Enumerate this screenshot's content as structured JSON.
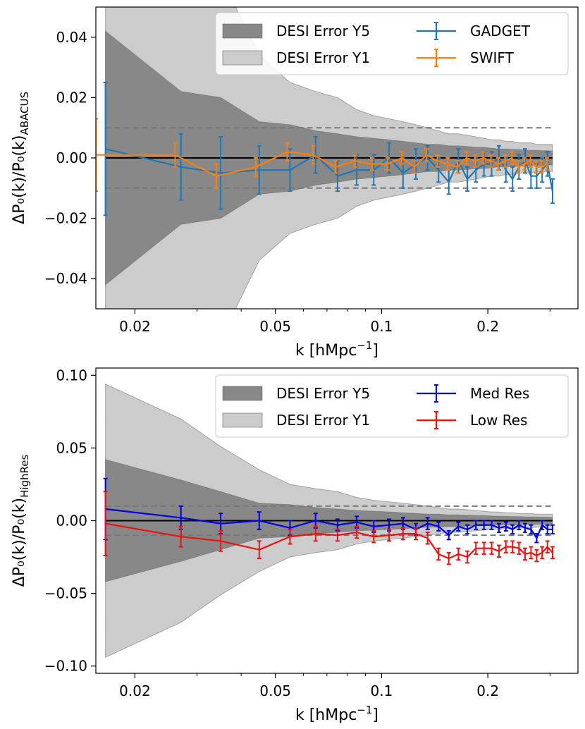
{
  "chart_data": [
    {
      "type": "line",
      "panel": "top",
      "xscale": "log",
      "xlim": [
        0.0155,
        0.36
      ],
      "ylim": [
        -0.05,
        0.05
      ],
      "xticks": [
        {
          "value": 0.02,
          "label": "0.02"
        },
        {
          "value": 0.05,
          "label": "0.05"
        },
        {
          "value": 0.1,
          "label": "0.1"
        },
        {
          "value": 0.2,
          "label": "0.2"
        }
      ],
      "yticks": [
        {
          "value": 0.04,
          "label": "0.04"
        },
        {
          "value": 0.02,
          "label": "0.02"
        },
        {
          "value": 0.0,
          "label": "0.00"
        },
        {
          "value": -0.02,
          "label": "−0.02"
        },
        {
          "value": -0.04,
          "label": "−0.04"
        }
      ],
      "xlabel_main": "k [hMpc",
      "xlabel_sup": "−1",
      "xlabel_close": "]",
      "ylabel_main": "ΔP₀(k)/P₀(k)",
      "ylabel_sub": "ABACUS",
      "dashed_levels": [
        0.01,
        -0.01
      ],
      "bands": [
        {
          "name": "DESI Error Y1",
          "color": "#cccccc",
          "k": [
            0.0165,
            0.027,
            0.035,
            0.045,
            0.055,
            0.065,
            0.075,
            0.085,
            0.095,
            0.105,
            0.115,
            0.125,
            0.135,
            0.145,
            0.155,
            0.165,
            0.175,
            0.185,
            0.195,
            0.205,
            0.215,
            0.225,
            0.235,
            0.245,
            0.255,
            0.265,
            0.275,
            0.285,
            0.295,
            0.305
          ],
          "upper": [
            0.06,
            0.06,
            0.06,
            0.034,
            0.025,
            0.022,
            0.02,
            0.016,
            0.014,
            0.013,
            0.012,
            0.011,
            0.01,
            0.009,
            0.008,
            0.008,
            0.0075,
            0.007,
            0.0065,
            0.006,
            0.006,
            0.0055,
            0.0055,
            0.005,
            0.005,
            0.005,
            0.0045,
            0.0045,
            0.0045,
            0.0045
          ]
        },
        {
          "name": "DESI Error Y5",
          "color": "#888888",
          "k": [
            0.0165,
            0.027,
            0.035,
            0.045,
            0.055,
            0.065,
            0.075,
            0.085,
            0.095,
            0.105,
            0.115,
            0.125,
            0.135,
            0.145,
            0.155,
            0.165,
            0.175,
            0.185,
            0.195,
            0.205,
            0.215,
            0.225,
            0.235,
            0.245,
            0.255,
            0.265,
            0.275,
            0.285,
            0.295,
            0.305
          ],
          "upper": [
            0.042,
            0.022,
            0.02,
            0.012,
            0.011,
            0.009,
            0.008,
            0.007,
            0.0065,
            0.006,
            0.0055,
            0.005,
            0.0045,
            0.0045,
            0.004,
            0.004,
            0.0038,
            0.0035,
            0.0035,
            0.0032,
            0.003,
            0.003,
            0.0028,
            0.0028,
            0.0026,
            0.0025,
            0.0025,
            0.0024,
            0.0024,
            0.0023
          ]
        }
      ],
      "series": [
        {
          "name": "GADGET",
          "color": "#1f77b4",
          "k": [
            0.0165,
            0.027,
            0.035,
            0.045,
            0.055,
            0.065,
            0.075,
            0.085,
            0.095,
            0.105,
            0.115,
            0.125,
            0.135,
            0.145,
            0.155,
            0.165,
            0.175,
            0.185,
            0.195,
            0.205,
            0.215,
            0.225,
            0.235,
            0.245,
            0.255,
            0.265,
            0.275,
            0.285,
            0.295,
            0.305
          ],
          "values": [
            0.003,
            -0.003,
            -0.005,
            -0.004,
            -0.004,
            0.001,
            -0.006,
            -0.004,
            -0.004,
            0.0,
            -0.005,
            -0.002,
            0.0,
            -0.004,
            -0.008,
            -0.001,
            -0.007,
            -0.004,
            -0.002,
            -0.002,
            0.0,
            -0.004,
            -0.007,
            -0.003,
            -0.001,
            -0.006,
            -0.006,
            -0.004,
            -0.002,
            -0.011
          ],
          "errors": [
            0.022,
            0.011,
            0.012,
            0.008,
            0.007,
            0.006,
            0.005,
            0.005,
            0.005,
            0.005,
            0.005,
            0.005,
            0.004,
            0.004,
            0.004,
            0.004,
            0.004,
            0.004,
            0.004,
            0.004,
            0.004,
            0.004,
            0.004,
            0.004,
            0.004,
            0.004,
            0.004,
            0.004,
            0.004,
            0.004
          ]
        },
        {
          "name": "SWIFT",
          "color": "#ff7f0e",
          "k": [
            0.0155,
            0.026,
            0.034,
            0.044,
            0.054,
            0.064,
            0.074,
            0.084,
            0.094,
            0.104,
            0.114,
            0.124,
            0.134,
            0.144,
            0.154,
            0.164,
            0.174,
            0.184,
            0.194,
            0.204,
            0.214,
            0.224,
            0.234,
            0.244,
            0.254,
            0.264,
            0.274,
            0.284,
            0.294
          ],
          "values": [
            0.001,
            0.001,
            -0.006,
            -0.003,
            0.002,
            0.001,
            -0.003,
            -0.001,
            -0.002,
            -0.002,
            0.0,
            -0.003,
            0.001,
            -0.001,
            -0.002,
            -0.003,
            0.0,
            -0.001,
            0.0,
            -0.001,
            -0.002,
            -0.001,
            0.0,
            -0.003,
            -0.002,
            -0.001,
            -0.003,
            -0.003,
            -0.002
          ],
          "errors": [
            0.012,
            0.004,
            0.004,
            0.003,
            0.003,
            0.003,
            0.002,
            0.002,
            0.002,
            0.002,
            0.002,
            0.002,
            0.002,
            0.002,
            0.002,
            0.002,
            0.002,
            0.002,
            0.002,
            0.002,
            0.002,
            0.002,
            0.002,
            0.002,
            0.002,
            0.002,
            0.002,
            0.002,
            0.002
          ]
        }
      ],
      "legend": [
        {
          "label": "DESI Error Y5",
          "kind": "band",
          "color": "#888888"
        },
        {
          "label": "DESI Error Y1",
          "kind": "band",
          "color": "#cccccc"
        },
        {
          "label": "GADGET",
          "kind": "errorbar",
          "color": "#1f77b4"
        },
        {
          "label": "SWIFT",
          "kind": "errorbar",
          "color": "#ff7f0e"
        }
      ],
      "legend_position": "top-right"
    },
    {
      "type": "line",
      "panel": "bottom",
      "xscale": "log",
      "xlim": [
        0.0155,
        0.36
      ],
      "ylim": [
        -0.105,
        0.105
      ],
      "xticks": [
        {
          "value": 0.02,
          "label": "0.02"
        },
        {
          "value": 0.05,
          "label": "0.05"
        },
        {
          "value": 0.1,
          "label": "0.1"
        },
        {
          "value": 0.2,
          "label": "0.2"
        }
      ],
      "yticks": [
        {
          "value": 0.1,
          "label": "0.10"
        },
        {
          "value": 0.05,
          "label": "0.05"
        },
        {
          "value": 0.0,
          "label": "0.00"
        },
        {
          "value": -0.05,
          "label": "−0.05"
        },
        {
          "value": -0.1,
          "label": "−0.10"
        }
      ],
      "xlabel_main": "k [hMpc",
      "xlabel_sup": "−1",
      "xlabel_close": "]",
      "ylabel_main": "ΔP₀(k)/P₀(k)",
      "ylabel_sub": "HighRes",
      "dashed_levels": [
        0.01,
        -0.01
      ],
      "bands": [
        {
          "name": "DESI Error Y1",
          "color": "#cccccc",
          "k": [
            0.0165,
            0.027,
            0.035,
            0.045,
            0.055,
            0.065,
            0.075,
            0.085,
            0.095,
            0.105,
            0.115,
            0.125,
            0.135,
            0.145,
            0.155,
            0.165,
            0.175,
            0.185,
            0.195,
            0.205,
            0.215,
            0.225,
            0.235,
            0.245,
            0.255,
            0.265,
            0.275,
            0.285,
            0.295,
            0.305
          ],
          "upper": [
            0.094,
            0.07,
            0.051,
            0.035,
            0.025,
            0.022,
            0.02,
            0.016,
            0.014,
            0.013,
            0.012,
            0.011,
            0.01,
            0.009,
            0.008,
            0.008,
            0.0075,
            0.007,
            0.0065,
            0.006,
            0.006,
            0.0055,
            0.0055,
            0.005,
            0.005,
            0.005,
            0.0045,
            0.0045,
            0.0045,
            0.0045
          ]
        },
        {
          "name": "DESI Error Y5",
          "color": "#888888",
          "k": [
            0.0165,
            0.027,
            0.035,
            0.045,
            0.055,
            0.065,
            0.075,
            0.085,
            0.095,
            0.105,
            0.115,
            0.125,
            0.135,
            0.145,
            0.155,
            0.165,
            0.175,
            0.185,
            0.195,
            0.205,
            0.215,
            0.225,
            0.235,
            0.245,
            0.255,
            0.265,
            0.275,
            0.285,
            0.295,
            0.305
          ],
          "upper": [
            0.042,
            0.028,
            0.02,
            0.012,
            0.011,
            0.009,
            0.008,
            0.007,
            0.0065,
            0.006,
            0.0055,
            0.005,
            0.0045,
            0.0045,
            0.004,
            0.004,
            0.0038,
            0.0035,
            0.0035,
            0.0032,
            0.003,
            0.003,
            0.0028,
            0.0028,
            0.0026,
            0.0025,
            0.0025,
            0.0024,
            0.0024,
            0.0023
          ]
        }
      ],
      "series": [
        {
          "name": "Med Res",
          "color": "#0000dd",
          "k": [
            0.0165,
            0.027,
            0.035,
            0.045,
            0.055,
            0.065,
            0.075,
            0.085,
            0.095,
            0.105,
            0.115,
            0.125,
            0.135,
            0.145,
            0.155,
            0.165,
            0.175,
            0.185,
            0.195,
            0.205,
            0.215,
            0.225,
            0.235,
            0.245,
            0.255,
            0.265,
            0.275,
            0.285,
            0.295,
            0.305
          ],
          "values": [
            0.008,
            0.002,
            -0.002,
            0.0,
            -0.005,
            0.0,
            -0.003,
            -0.001,
            -0.004,
            -0.003,
            -0.002,
            -0.006,
            -0.002,
            -0.004,
            -0.01,
            -0.004,
            -0.006,
            -0.003,
            -0.003,
            -0.003,
            -0.005,
            -0.004,
            -0.006,
            -0.003,
            -0.005,
            -0.006,
            -0.012,
            -0.003,
            -0.006,
            -0.006
          ],
          "errors": [
            0.021,
            0.008,
            0.007,
            0.006,
            0.005,
            0.005,
            0.004,
            0.004,
            0.004,
            0.004,
            0.004,
            0.004,
            0.004,
            0.003,
            0.003,
            0.003,
            0.003,
            0.003,
            0.003,
            0.003,
            0.003,
            0.003,
            0.003,
            0.003,
            0.003,
            0.003,
            0.003,
            0.003,
            0.003,
            0.003
          ]
        },
        {
          "name": "Low Res",
          "color": "#ee1111",
          "k": [
            0.0165,
            0.027,
            0.035,
            0.045,
            0.055,
            0.065,
            0.075,
            0.085,
            0.095,
            0.105,
            0.115,
            0.125,
            0.135,
            0.145,
            0.155,
            0.165,
            0.175,
            0.185,
            0.195,
            0.205,
            0.215,
            0.225,
            0.235,
            0.245,
            0.255,
            0.265,
            0.275,
            0.285,
            0.295,
            0.305
          ],
          "values": [
            -0.002,
            -0.011,
            -0.014,
            -0.02,
            -0.011,
            -0.009,
            -0.01,
            -0.008,
            -0.011,
            -0.01,
            -0.009,
            -0.009,
            -0.012,
            -0.023,
            -0.026,
            -0.023,
            -0.025,
            -0.019,
            -0.019,
            -0.019,
            -0.021,
            -0.018,
            -0.018,
            -0.019,
            -0.023,
            -0.022,
            -0.024,
            -0.022,
            -0.018,
            -0.022
          ],
          "errors": [
            0.022,
            0.007,
            0.007,
            0.006,
            0.005,
            0.005,
            0.004,
            0.004,
            0.004,
            0.004,
            0.004,
            0.004,
            0.004,
            0.004,
            0.004,
            0.004,
            0.004,
            0.004,
            0.004,
            0.004,
            0.004,
            0.004,
            0.004,
            0.004,
            0.004,
            0.004,
            0.004,
            0.004,
            0.004,
            0.004
          ]
        }
      ],
      "legend": [
        {
          "label": "DESI Error Y5",
          "kind": "band",
          "color": "#888888"
        },
        {
          "label": "DESI Error Y1",
          "kind": "band",
          "color": "#cccccc"
        },
        {
          "label": "Med Res",
          "kind": "errorbar",
          "color": "#0000dd"
        },
        {
          "label": "Low Res",
          "kind": "errorbar",
          "color": "#ee1111"
        }
      ],
      "legend_position": "top-right"
    }
  ]
}
